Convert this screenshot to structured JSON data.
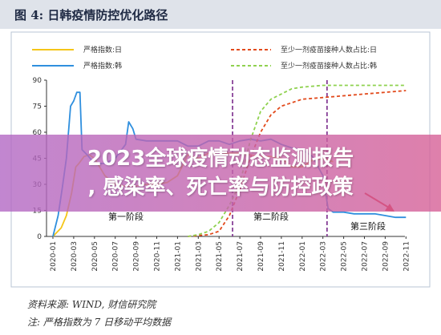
{
  "figure_title": "图 4:  日韩疫情防控优化路径",
  "chart_data": {
    "type": "line",
    "legend": {
      "left": [
        "严格指数:日",
        "严格指数:韩"
      ],
      "right": [
        "至少一剂疫苗接种人数占比:日",
        "至少一剂疫苗接种人数占比:韩"
      ]
    },
    "x_tick_labels": [
      "2020-01",
      "2020-03",
      "2020-05",
      "2020-07",
      "2020-09",
      "2020-11",
      "2021-01",
      "2021-03",
      "2021-05",
      "2021-07",
      "2021-09",
      "2021-11",
      "2022-01",
      "2022-03",
      "2022-05",
      "2022-07",
      "2022-09",
      "2022-11"
    ],
    "y_ticks": [
      0,
      15,
      30,
      45,
      60,
      75,
      90
    ],
    "ylim": [
      0,
      90
    ],
    "x_unit": "month index from 2020-01",
    "series": [
      {
        "name": "严格指数:日",
        "axis": "left",
        "style": "solid",
        "color": "#f5c518",
        "points": [
          [
            0,
            0
          ],
          [
            0.8,
            5
          ],
          [
            1.3,
            12
          ],
          [
            1.8,
            25
          ],
          [
            2.2,
            40
          ],
          [
            2.5,
            42
          ],
          [
            3,
            46
          ],
          [
            3.5,
            47
          ],
          [
            4,
            45
          ],
          [
            5,
            35
          ],
          [
            6,
            30
          ],
          [
            7,
            29
          ],
          [
            8,
            29
          ],
          [
            9,
            30
          ],
          [
            10,
            30
          ],
          [
            11,
            31
          ],
          [
            12,
            35
          ],
          [
            13,
            47
          ],
          [
            14,
            45
          ],
          [
            15,
            48
          ],
          [
            16,
            47
          ],
          [
            17,
            48
          ],
          [
            18,
            48
          ],
          [
            19,
            47
          ],
          [
            20,
            46
          ],
          [
            21,
            46
          ],
          [
            22,
            45
          ],
          [
            23,
            40
          ],
          [
            24,
            40
          ],
          [
            25,
            44
          ],
          [
            26,
            45
          ],
          [
            27,
            43
          ]
        ]
      },
      {
        "name": "严格指数:韩",
        "axis": "left",
        "style": "solid",
        "color": "#2f8fde",
        "points": [
          [
            0,
            0
          ],
          [
            0.5,
            12
          ],
          [
            0.9,
            28
          ],
          [
            1.3,
            45
          ],
          [
            1.7,
            75
          ],
          [
            2,
            78
          ],
          [
            2.3,
            83
          ],
          [
            2.6,
            83
          ],
          [
            2.8,
            50
          ],
          [
            3.3,
            47
          ],
          [
            4,
            42
          ],
          [
            5,
            42
          ],
          [
            6,
            45
          ],
          [
            7,
            53
          ],
          [
            7.3,
            66
          ],
          [
            7.7,
            62
          ],
          [
            8,
            56
          ],
          [
            9,
            55
          ],
          [
            10,
            55
          ],
          [
            11,
            55
          ],
          [
            12,
            55
          ],
          [
            13,
            52
          ],
          [
            14,
            52
          ],
          [
            15,
            55
          ],
          [
            16,
            55
          ],
          [
            17,
            53
          ],
          [
            18,
            55
          ],
          [
            19,
            56
          ],
          [
            20,
            55
          ],
          [
            21,
            56
          ],
          [
            22,
            53
          ],
          [
            23,
            51
          ],
          [
            24,
            50
          ],
          [
            25,
            46
          ],
          [
            26,
            35
          ],
          [
            26.5,
            16
          ],
          [
            27,
            14
          ],
          [
            28,
            14
          ],
          [
            29,
            13
          ],
          [
            30,
            13
          ],
          [
            31,
            13
          ],
          [
            32,
            12
          ],
          [
            33,
            11
          ],
          [
            34,
            11
          ]
        ]
      },
      {
        "name": "至少一剂疫苗接种人数占比:日",
        "axis": "right",
        "style": "dashed",
        "color": "#e24a1c",
        "points": [
          [
            13,
            0
          ],
          [
            15,
            1
          ],
          [
            16,
            3
          ],
          [
            17,
            12
          ],
          [
            18,
            27
          ],
          [
            19,
            45
          ],
          [
            20,
            60
          ],
          [
            21,
            70
          ],
          [
            22,
            75
          ],
          [
            23,
            77
          ],
          [
            24,
            79
          ],
          [
            26,
            80
          ],
          [
            28,
            81
          ],
          [
            30,
            82
          ],
          [
            32,
            83
          ],
          [
            34,
            84
          ]
        ]
      },
      {
        "name": "至少一剂疫苗接种人数占比:韩",
        "axis": "right",
        "style": "dashed",
        "color": "#8fd14f",
        "points": [
          [
            13,
            0
          ],
          [
            14,
            1
          ],
          [
            15,
            3
          ],
          [
            16,
            8
          ],
          [
            17,
            18
          ],
          [
            18,
            30
          ],
          [
            19,
            55
          ],
          [
            20,
            72
          ],
          [
            21,
            79
          ],
          [
            22,
            82
          ],
          [
            23,
            85
          ],
          [
            24,
            86
          ],
          [
            26,
            87
          ],
          [
            28,
            87
          ],
          [
            30,
            87
          ],
          [
            32,
            87
          ],
          [
            34,
            87
          ]
        ]
      }
    ],
    "phase_dividers": [
      17.3,
      26.4
    ],
    "phases": [
      "第一阶段",
      "第二阶段",
      "第三阶段"
    ]
  },
  "notes": {
    "source": "资料来源:  WIND,  财信研究院",
    "footnote": "注:  严格指数为 7 日移动平均数据"
  },
  "overlay": {
    "line1": "2023全球疫情动态监测报告",
    "line2": ", 感染率、死亡率与防控政策"
  }
}
